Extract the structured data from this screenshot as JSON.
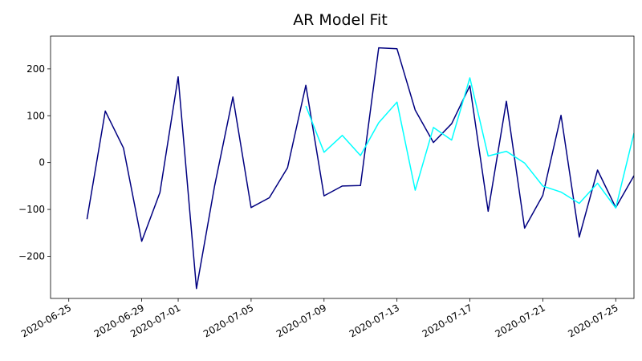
{
  "chart_data": {
    "type": "line",
    "title": "AR Model Fit",
    "xlabel": "",
    "ylabel": "",
    "x_axis_type": "date",
    "xlim": [
      "2020-06-24",
      "2020-07-26"
    ],
    "ylim": [
      -290,
      270
    ],
    "x_ticks": [
      "2020-06-25",
      "2020-06-29",
      "2020-07-01",
      "2020-07-05",
      "2020-07-09",
      "2020-07-13",
      "2020-07-17",
      "2020-07-21",
      "2020-07-25"
    ],
    "y_ticks": [
      -200,
      -100,
      0,
      100,
      200
    ],
    "grid": false,
    "legend": "none",
    "series": [
      {
        "color": "#000080",
        "x": [
          "2020-06-26",
          "2020-06-27",
          "2020-06-28",
          "2020-06-29",
          "2020-06-30",
          "2020-07-01",
          "2020-07-02",
          "2020-07-03",
          "2020-07-04",
          "2020-07-05",
          "2020-07-06",
          "2020-07-07",
          "2020-07-08",
          "2020-07-09",
          "2020-07-10",
          "2020-07-11",
          "2020-07-12",
          "2020-07-13",
          "2020-07-14",
          "2020-07-15",
          "2020-07-16",
          "2020-07-17",
          "2020-07-18",
          "2020-07-19",
          "2020-07-20",
          "2020-07-21",
          "2020-07-22",
          "2020-07-23",
          "2020-07-24",
          "2020-07-25",
          "2020-07-26"
        ],
        "y": [
          -121,
          110,
          31,
          -168,
          -64,
          183,
          -269,
          -49,
          140,
          -96,
          -75,
          -11,
          165,
          -71,
          -50,
          -49,
          245,
          243,
          112,
          43,
          83,
          164,
          -104,
          131,
          -140,
          -70,
          101,
          -159,
          -16,
          -96,
          -28
        ]
      },
      {
        "color": "#00ffff",
        "x": [
          "2020-07-08",
          "2020-07-09",
          "2020-07-10",
          "2020-07-11",
          "2020-07-12",
          "2020-07-13",
          "2020-07-14",
          "2020-07-15",
          "2020-07-16",
          "2020-07-17",
          "2020-07-18",
          "2020-07-19",
          "2020-07-20",
          "2020-07-21",
          "2020-07-22",
          "2020-07-23",
          "2020-07-24",
          "2020-07-25",
          "2020-07-26"
        ],
        "y": [
          121,
          22,
          58,
          15,
          85,
          129,
          -59,
          75,
          48,
          181,
          14,
          24,
          -1,
          -50,
          -63,
          -87,
          -44,
          -97,
          63
        ]
      }
    ]
  }
}
